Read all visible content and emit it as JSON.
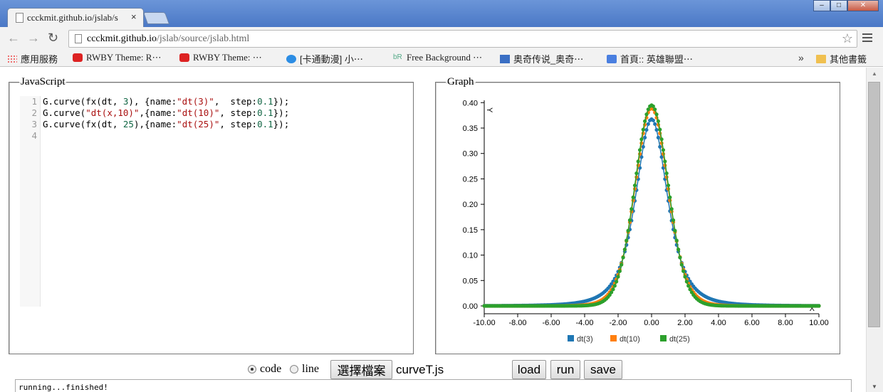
{
  "browser": {
    "tab_title": "ccckmit.github.io/jslab/s",
    "tab_close": "×",
    "url_host": "ccckmit.github.io",
    "url_path": "/jslab/source/jslab.html",
    "bookmarks": [
      {
        "label": "應用服務",
        "icon": "apps-icon"
      },
      {
        "label": "RWBY Theme: R⋯",
        "icon": "youtube-icon"
      },
      {
        "label": "RWBY Theme: ⋯",
        "icon": "youtube-icon"
      },
      {
        "label": "[卡通動漫] 小⋯",
        "icon": "play-icon"
      },
      {
        "label": "Free Background ⋯",
        "icon": "br-icon"
      },
      {
        "label": "奥奇传说_奥奇⋯",
        "icon": "grid-icon"
      },
      {
        "label": "首頁:: 英雄聯盟⋯",
        "icon": "google-icon"
      }
    ],
    "bookmarks_more": "»",
    "other_bookmarks": "其他書籤"
  },
  "panels": {
    "js_legend": "JavaScript",
    "graph_legend": "Graph"
  },
  "editor": {
    "line_numbers": [
      "1",
      "2",
      "3",
      "4"
    ]
  },
  "controls": {
    "radio_code": "code",
    "radio_line": "line",
    "choose_file": "選擇檔案",
    "filename": "curveT.js",
    "load": "load",
    "run": "run",
    "save": "save"
  },
  "status": "running...finished!",
  "chart_data": {
    "type": "scatter",
    "xlabel": "X",
    "ylabel": "Y",
    "xlim": [
      -10,
      10
    ],
    "ylim": [
      0,
      0.42
    ],
    "x_ticks": [
      "-10.00",
      "-8.00",
      "-6.00",
      "-4.00",
      "-2.00",
      "0.00",
      "2.00",
      "4.00",
      "6.00",
      "8.00",
      "10.00"
    ],
    "y_ticks": [
      "0.00",
      "0.05",
      "0.10",
      "0.15",
      "0.20",
      "0.25",
      "0.30",
      "0.35",
      "0.40"
    ],
    "legend_position": "bottom",
    "series": [
      {
        "name": "dt(3)",
        "df": 3,
        "color": "#1f77b4",
        "peak": 0.3676
      },
      {
        "name": "dt(10)",
        "df": 10,
        "color": "#ff7f0e",
        "peak": 0.3891
      },
      {
        "name": "dt(25)",
        "df": 25,
        "color": "#2ca02c",
        "peak": 0.3949
      }
    ],
    "step": 0.1
  }
}
